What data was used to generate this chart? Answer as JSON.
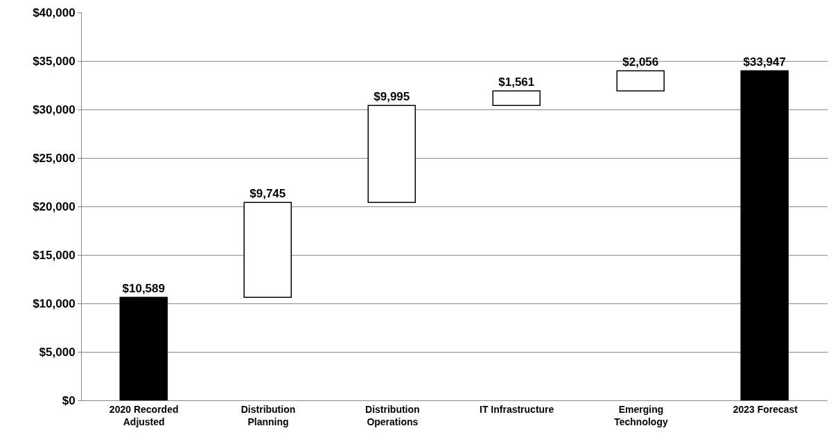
{
  "chart_data": {
    "type": "bar",
    "categories": [
      "2020 Recorded Adjusted",
      "Distribution Planning",
      "Distribution Operations",
      "IT Infrastructure",
      "Emerging Technology",
      "2023 Forecast"
    ],
    "values": [
      10589,
      9745,
      9995,
      1561,
      2056,
      33947
    ],
    "base": [
      0,
      10589,
      20334,
      30329,
      31890,
      0
    ],
    "colors": [
      "#000000",
      "#ffffff",
      "#ffffff",
      "#ffffff",
      "#ffffff",
      "#000000"
    ],
    "value_labels": [
      "$10,589",
      "$9,745",
      "$9,995",
      "$1,561",
      "$2,056",
      "$33,947"
    ],
    "ylim": [
      0,
      40000
    ],
    "yticks": [
      {
        "value": 0,
        "label": "$0"
      },
      {
        "value": 5000,
        "label": "$5,000"
      },
      {
        "value": 10000,
        "label": "$10,000"
      },
      {
        "value": 15000,
        "label": "$15,000"
      },
      {
        "value": 20000,
        "label": "$20,000"
      },
      {
        "value": 25000,
        "label": "$25,000"
      },
      {
        "value": 30000,
        "label": "$30,000"
      },
      {
        "value": 35000,
        "label": "$35,000"
      },
      {
        "value": 40000,
        "label": "$40,000"
      }
    ],
    "grid": "y"
  }
}
